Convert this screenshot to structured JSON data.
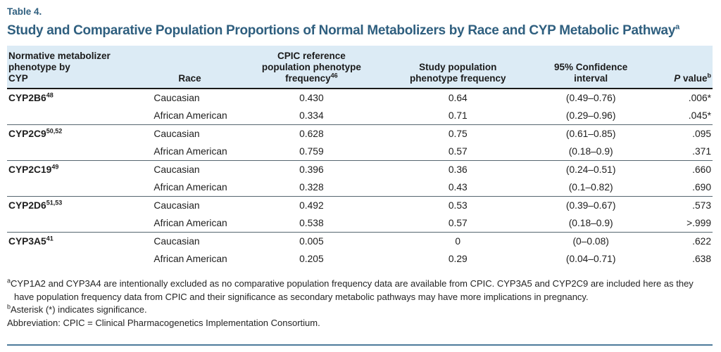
{
  "colors": {
    "title": "#2f5f7f",
    "header_bg": "#dcebf5",
    "rule_dark": "#1a1a1a",
    "rule_group": "#55656f",
    "rule_bottom": "#4c7a9b"
  },
  "header": {
    "table_label": "Table 4.",
    "title": "Study and Comparative Population Proportions of Normal Metabolizers by Race and CYP Metabolic Pathway",
    "title_sup": "a"
  },
  "table": {
    "columns": [
      {
        "id": "pathway",
        "lines": [
          "Normative metabolizer",
          "phenotype by",
          "CYP"
        ],
        "align": "left"
      },
      {
        "id": "race",
        "lines": [
          "Race"
        ],
        "align": "center"
      },
      {
        "id": "cpic",
        "lines": [
          "CPIC reference",
          "population phenotype",
          "frequency"
        ],
        "sup": "46",
        "align": "center"
      },
      {
        "id": "study",
        "lines": [
          "Study population",
          "phenotype frequency"
        ],
        "align": "center"
      },
      {
        "id": "ci",
        "lines": [
          "95% Confidence",
          "interval"
        ],
        "align": "center"
      },
      {
        "id": "pvalue",
        "italic_lead": "P",
        "lines": [
          " value"
        ],
        "sup": "b",
        "align": "right"
      }
    ],
    "groups": [
      {
        "pathway": "CYP2B6",
        "refs": "48",
        "rows": [
          {
            "race": "Caucasian",
            "cpic": "0.430",
            "study": "0.64",
            "ci": "(0.49–0.76)",
            "p": ".006*"
          },
          {
            "race": "African American",
            "cpic": "0.334",
            "study": "0.71",
            "ci": "(0.29–0.96)",
            "p": ".045*"
          }
        ]
      },
      {
        "pathway": "CYP2C9",
        "refs": "50,52",
        "rows": [
          {
            "race": "Caucasian",
            "cpic": "0.628",
            "study": "0.75",
            "ci": "(0.61–0.85)",
            "p": ".095"
          },
          {
            "race": "African American",
            "cpic": "0.759",
            "study": "0.57",
            "ci": "(0.18–0.9)",
            "p": ".371"
          }
        ]
      },
      {
        "pathway": "CYP2C19",
        "refs": "49",
        "rows": [
          {
            "race": "Caucasian",
            "cpic": "0.396",
            "study": "0.36",
            "ci": "(0.24–0.51)",
            "p": ".660"
          },
          {
            "race": "African American",
            "cpic": "0.328",
            "study": "0.43",
            "ci": "(0.1–0.82)",
            "p": ".690"
          }
        ]
      },
      {
        "pathway": "CYP2D6",
        "refs": "51,53",
        "rows": [
          {
            "race": "Caucasian",
            "cpic": "0.492",
            "study": "0.53",
            "ci": "(0.39–0.67)",
            "p": ".573"
          },
          {
            "race": "African American",
            "cpic": "0.538",
            "study": "0.57",
            "ci": "(0.18–0.9)",
            "p": ">.999"
          }
        ]
      },
      {
        "pathway": "CYP3A5",
        "refs": "41",
        "rows": [
          {
            "race": "Caucasian",
            "cpic": "0.005",
            "study": "0",
            "ci": "(0–0.08)",
            "p": ".622"
          },
          {
            "race": "African American",
            "cpic": "0.205",
            "study": "0.29",
            "ci": "(0.04–0.71)",
            "p": ".638"
          }
        ]
      }
    ]
  },
  "footnotes": [
    {
      "sup": "a",
      "text": "CYP1A2 and CYP3A4 are intentionally excluded as no comparative population frequency data are available from CPIC. CYP3A5 and CYP2C9 are included here as they have population frequency data from CPIC and their significance as secondary metabolic pathways may have more implications in pregnancy."
    },
    {
      "sup": "b",
      "text": "Asterisk (*) indicates significance."
    },
    {
      "sup": "",
      "text": "Abbreviation: CPIC = Clinical Pharmacogenetics Implementation Consortium."
    }
  ]
}
